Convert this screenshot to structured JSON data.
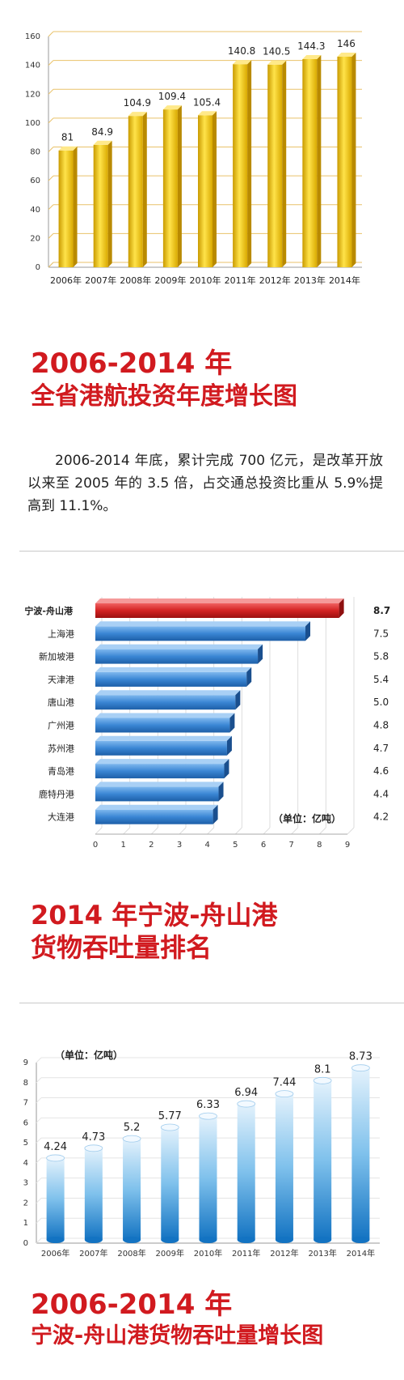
{
  "section1": {
    "title_line1": "2006-2014 年",
    "title_line2": "全省港航投资年度增长图",
    "paragraph": "2006-2014 年底，累计完成 700 亿元，是改革开放以来至 2005 年的 3.5 倍，占交通总投资比重从 5.9%提高到 11.1%。"
  },
  "section2": {
    "title_line1": "2014 年宁波-舟山港",
    "title_line2": "货物吞吐量排名"
  },
  "section3": {
    "title_line1": "2006-2014 年",
    "title_line2": "宁波-舟山港货物吞吐量增长图"
  },
  "colors": {
    "accent_red": "#d11a1f",
    "bar_yellow": "#f2c200",
    "bar_blue": "#2f7fd0",
    "bar_highlight": "#cc1a1a"
  },
  "chart_data": [
    {
      "type": "bar",
      "categories": [
        "2006年",
        "2007年",
        "2008年",
        "2009年",
        "2010年",
        "2011年",
        "2012年",
        "2013年",
        "2014年"
      ],
      "values": [
        81,
        84.9,
        104.9,
        109.4,
        105.4,
        140.8,
        140.5,
        144.3,
        146
      ],
      "value_labels": [
        "81",
        "84.9",
        "104.9",
        "109.4",
        "105.4",
        "140.8",
        "140.5",
        "144.3",
        "146"
      ],
      "ylim": [
        0,
        160
      ],
      "yticks": [
        "0",
        "20",
        "40",
        "60",
        "80",
        "100",
        "120",
        "140",
        "160"
      ],
      "grid": true
    },
    {
      "type": "bar",
      "orientation": "horizontal",
      "categories": [
        "宁波-舟山港",
        "上海港",
        "新加坡港",
        "天津港",
        "唐山港",
        "广州港",
        "苏州港",
        "青岛港",
        "鹿特丹港",
        "大连港"
      ],
      "values": [
        8.7,
        7.5,
        5.8,
        5.4,
        5.0,
        4.8,
        4.7,
        4.6,
        4.4,
        4.2
      ],
      "value_labels": [
        "8.7",
        "7.5",
        "5.8",
        "5.4",
        "5.0",
        "4.8",
        "4.7",
        "4.6",
        "4.4",
        "4.2"
      ],
      "highlight": "宁波-舟山港",
      "xlim": [
        0,
        9
      ],
      "xticks": [
        "0",
        "1",
        "2",
        "3",
        "4",
        "5",
        "6",
        "7",
        "8",
        "9"
      ],
      "unit_note": "（单位：亿吨）"
    },
    {
      "type": "bar",
      "categories": [
        "2006年",
        "2007年",
        "2008年",
        "2009年",
        "2010年",
        "2011年",
        "2012年",
        "2013年",
        "2014年"
      ],
      "values": [
        4.24,
        4.73,
        5.2,
        5.77,
        6.33,
        6.94,
        7.44,
        8.1,
        8.73
      ],
      "value_labels": [
        "4.24",
        "4.73",
        "5.2",
        "5.77",
        "6.33",
        "6.94",
        "7.44",
        "8.1",
        "8.73"
      ],
      "ylim": [
        0,
        9
      ],
      "yticks": [
        "0",
        "1",
        "2",
        "3",
        "4",
        "5",
        "6",
        "7",
        "8",
        "9"
      ],
      "unit_note": "（单位：亿吨）",
      "grid": true
    }
  ]
}
